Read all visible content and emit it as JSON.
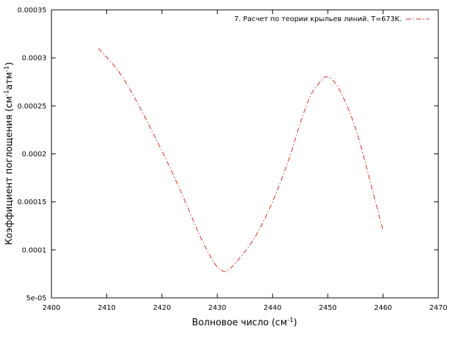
{
  "chart_data": {
    "type": "line",
    "xlabel": {
      "main": "Волновое число (см",
      "sup": "-1",
      "tail": ")"
    },
    "ylabel": {
      "main": "Коэффициент поглощения (см",
      "sup1": "-1",
      "mid": "атм",
      "sup2": "-1",
      "tail": ")"
    },
    "xlim": [
      2400,
      2470
    ],
    "ylim": [
      5e-05,
      0.00035
    ],
    "x_ticks": [
      2400,
      2410,
      2420,
      2430,
      2440,
      2450,
      2460,
      2470
    ],
    "x_tick_labels": [
      "2400",
      "2410",
      "2420",
      "2430",
      "2440",
      "2450",
      "2460",
      "2470"
    ],
    "y_ticks": [
      5e-05,
      0.0001,
      0.00015,
      0.0002,
      0.00025,
      0.0003,
      0.00035
    ],
    "y_tick_labels": [
      "5e-05",
      "0.0001",
      "0.00015",
      "0.0002",
      "0.00025",
      "0.0003",
      "0.00035"
    ],
    "grid": false,
    "legend_position": "top-right",
    "series": [
      {
        "name": "7. Расчет по теории крыльев линий. T=673K.",
        "color": "#e0201b",
        "dash": "dash-dot",
        "x": [
          2408.5,
          2412,
          2415,
          2418,
          2421,
          2424,
          2427,
          2429.5,
          2431,
          2432,
          2434,
          2437,
          2440,
          2443,
          2445,
          2447,
          2449,
          2450,
          2452,
          2455,
          2458,
          2460
        ],
        "y": [
          0.00031,
          0.000287,
          0.000259,
          0.000226,
          0.000191,
          0.000153,
          0.000113,
          8.6e-05,
          7.8e-05,
          7.9e-05,
          9.1e-05,
          0.000115,
          0.00015,
          0.000195,
          0.000232,
          0.000262,
          0.000277,
          0.00028,
          0.000268,
          0.000227,
          0.000164,
          0.00012
        ]
      }
    ]
  }
}
